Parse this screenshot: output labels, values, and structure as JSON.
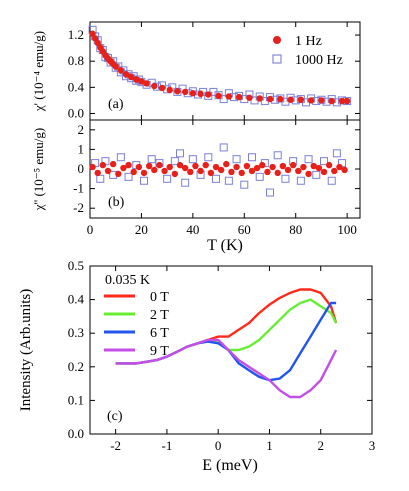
{
  "colors": {
    "hz1": "#e8201a",
    "hz1000": "#7a7fd8",
    "t0": "#ff2a1a",
    "t2": "#66ee33",
    "t6": "#2255ee",
    "t9": "#c44ee8"
  },
  "chart_data": [
    {
      "type": "scatter",
      "panel_label": "(a)",
      "ylabel": "χ' (10⁻⁴ emu/g)",
      "ylim": [
        -0.1,
        1.4
      ],
      "xlim": [
        0,
        105
      ],
      "yticks": [
        "0.0",
        "0.4",
        "0.8",
        "1.2"
      ],
      "grid": false,
      "legend_position": "top-right",
      "series": [
        {
          "name": "1 Hz",
          "marker": "filled-circle",
          "x": [
            1,
            2,
            3,
            4,
            5,
            6,
            7,
            8,
            9,
            10,
            12,
            14,
            16,
            18,
            20,
            22,
            25,
            28,
            31,
            34,
            37,
            40,
            43,
            46,
            50,
            54,
            58,
            62,
            66,
            70,
            74,
            78,
            82,
            86,
            90,
            94,
            98,
            100
          ],
          "values": [
            1.22,
            1.15,
            1.08,
            1.01,
            0.95,
            0.89,
            0.84,
            0.8,
            0.76,
            0.72,
            0.66,
            0.6,
            0.56,
            0.52,
            0.49,
            0.46,
            0.42,
            0.39,
            0.36,
            0.34,
            0.33,
            0.31,
            0.3,
            0.29,
            0.27,
            0.26,
            0.25,
            0.24,
            0.23,
            0.22,
            0.22,
            0.21,
            0.21,
            0.2,
            0.2,
            0.19,
            0.19,
            0.19
          ]
        },
        {
          "name": "1000 Hz",
          "marker": "open-square",
          "x": [
            1,
            2,
            3,
            4,
            5,
            6,
            7,
            8,
            9,
            10,
            11,
            12,
            13,
            14,
            15,
            16,
            17,
            18,
            19,
            20,
            22,
            24,
            26,
            28,
            30,
            32,
            34,
            36,
            38,
            40,
            42,
            44,
            46,
            48,
            50,
            52,
            54,
            56,
            58,
            60,
            62,
            64,
            66,
            68,
            70,
            72,
            74,
            76,
            78,
            80,
            82,
            84,
            86,
            88,
            90,
            92,
            94,
            96,
            98,
            100
          ],
          "values": [
            1.28,
            1.18,
            1.12,
            1.0,
            0.97,
            0.86,
            0.85,
            0.78,
            0.8,
            0.7,
            0.72,
            0.63,
            0.66,
            0.57,
            0.6,
            0.54,
            0.57,
            0.5,
            0.52,
            0.48,
            0.44,
            0.47,
            0.41,
            0.43,
            0.37,
            0.4,
            0.33,
            0.38,
            0.31,
            0.34,
            0.29,
            0.33,
            0.27,
            0.33,
            0.28,
            0.22,
            0.31,
            0.25,
            0.27,
            0.22,
            0.29,
            0.2,
            0.26,
            0.19,
            0.25,
            0.21,
            0.23,
            0.18,
            0.24,
            0.2,
            0.22,
            0.17,
            0.23,
            0.19,
            0.21,
            0.18,
            0.22,
            0.17,
            0.2,
            0.19
          ]
        }
      ]
    },
    {
      "type": "scatter",
      "panel_label": "(b)",
      "ylabel": "χ'' (10⁻⁵ emu/g)",
      "xlabel": "T (K)",
      "xlim": [
        0,
        105
      ],
      "ylim": [
        -2.5,
        2.5
      ],
      "xticks": [
        "0",
        "20",
        "40",
        "60",
        "80",
        "100"
      ],
      "yticks": [
        "-2",
        "-1",
        "0",
        "1",
        "2"
      ],
      "grid": false,
      "series": [
        {
          "name": "1 Hz",
          "marker": "filled-circle",
          "x": [
            1,
            3,
            5,
            7,
            9,
            11,
            13,
            15,
            17,
            19,
            21,
            23,
            25,
            27,
            29,
            31,
            33,
            35,
            37,
            39,
            41,
            43,
            45,
            47,
            49,
            51,
            53,
            55,
            57,
            59,
            61,
            63,
            65,
            67,
            69,
            71,
            73,
            75,
            77,
            79,
            81,
            83,
            85,
            87,
            89,
            91,
            93,
            95,
            97,
            99
          ],
          "values": [
            0.1,
            -0.2,
            0.2,
            -0.1,
            0.25,
            -0.25,
            0.05,
            0.2,
            -0.15,
            0.1,
            -0.2,
            0.15,
            -0.05,
            0.2,
            -0.1,
            0.1,
            -0.25,
            0.2,
            0.05,
            -0.15,
            0.15,
            -0.1,
            0.2,
            -0.2,
            0.1,
            -0.05,
            0.25,
            -0.15,
            0.1,
            -0.2,
            0.15,
            -0.1,
            0.05,
            0.2,
            -0.15,
            0.1,
            -0.2,
            0.15,
            -0.05,
            0.2,
            -0.1,
            0.1,
            -0.25,
            0.15,
            0.05,
            -0.15,
            0.2,
            -0.1,
            0.1,
            -0.05
          ]
        },
        {
          "name": "1000 Hz",
          "marker": "open-square",
          "x": [
            2,
            4,
            6,
            9,
            12,
            15,
            18,
            21,
            24,
            27,
            30,
            33,
            35,
            37,
            40,
            43,
            46,
            49,
            52,
            54,
            57,
            60,
            63,
            66,
            68,
            70,
            73,
            76,
            79,
            82,
            85,
            88,
            91,
            94,
            96,
            98
          ],
          "values": [
            0.3,
            -0.5,
            0.4,
            -0.3,
            0.6,
            -0.4,
            0.2,
            -0.6,
            0.5,
            0.3,
            -0.5,
            0.4,
            0.8,
            -0.7,
            0.5,
            -0.3,
            0.6,
            -0.5,
            1.1,
            -0.6,
            0.5,
            -0.8,
            0.6,
            -0.4,
            0.3,
            -1.2,
            0.7,
            -0.5,
            0.4,
            -0.6,
            0.5,
            -0.3,
            0.4,
            -0.6,
            0.8,
            0.3
          ]
        }
      ]
    },
    {
      "type": "line",
      "panel_label": "(c)",
      "annotation": "0.035 K",
      "xlabel": "E (meV)",
      "ylabel": "Intensity (Arb.units)",
      "xlim": [
        -2.5,
        3.0
      ],
      "ylim": [
        0.0,
        0.5
      ],
      "xticks": [
        "-2",
        "-1",
        "0",
        "1",
        "2",
        "3"
      ],
      "yticks": [
        "0.0",
        "0.1",
        "0.2",
        "0.3",
        "0.4",
        "0.5"
      ],
      "grid": false,
      "legend_position": "top-left",
      "x": [
        -2.0,
        -1.8,
        -1.6,
        -1.4,
        -1.2,
        -1.0,
        -0.8,
        -0.6,
        -0.4,
        -0.2,
        0.0,
        0.2,
        0.4,
        0.6,
        0.8,
        1.0,
        1.2,
        1.4,
        1.6,
        1.8,
        2.0,
        2.2,
        2.3
      ],
      "series": [
        {
          "name": "0 T",
          "values": [
            0.21,
            0.21,
            0.21,
            0.215,
            0.22,
            0.23,
            0.245,
            0.26,
            0.27,
            0.28,
            0.29,
            0.29,
            0.31,
            0.33,
            0.36,
            0.385,
            0.405,
            0.42,
            0.43,
            0.43,
            0.42,
            0.38,
            0.33
          ]
        },
        {
          "name": "2 T",
          "values": [
            0.21,
            0.21,
            0.21,
            0.215,
            0.22,
            0.23,
            0.245,
            0.26,
            0.27,
            0.28,
            0.275,
            0.25,
            0.25,
            0.26,
            0.28,
            0.31,
            0.34,
            0.37,
            0.39,
            0.4,
            0.38,
            0.36,
            0.33
          ]
        },
        {
          "name": "6 T",
          "values": [
            0.21,
            0.21,
            0.21,
            0.215,
            0.22,
            0.23,
            0.245,
            0.26,
            0.27,
            0.275,
            0.27,
            0.25,
            0.21,
            0.19,
            0.17,
            0.16,
            0.165,
            0.19,
            0.24,
            0.29,
            0.34,
            0.39,
            0.39
          ]
        },
        {
          "name": "9 T",
          "values": [
            0.21,
            0.21,
            0.21,
            0.215,
            0.22,
            0.23,
            0.245,
            0.26,
            0.27,
            0.28,
            0.28,
            0.25,
            0.22,
            0.2,
            0.18,
            0.16,
            0.13,
            0.11,
            0.11,
            0.13,
            0.16,
            0.22,
            0.25
          ]
        }
      ]
    }
  ]
}
